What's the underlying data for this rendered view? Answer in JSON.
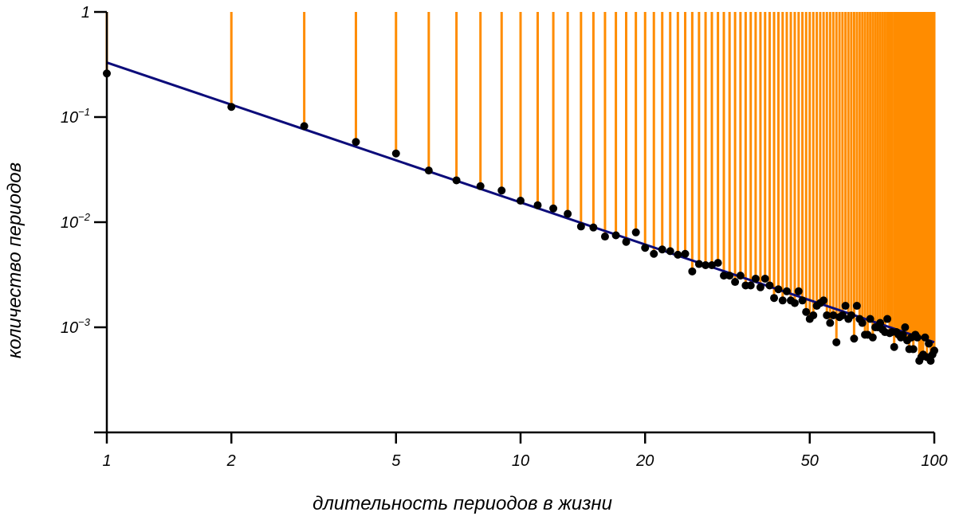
{
  "chart_data": {
    "type": "scatter",
    "x_scale": "log",
    "y_scale": "log",
    "xlabel": "длительность периодов в жизни",
    "ylabel": "количество периодов",
    "xlim": [
      1,
      100
    ],
    "ylim": [
      0.0001,
      1
    ],
    "x_ticks": [
      {
        "value": 1,
        "label": "1"
      },
      {
        "value": 2,
        "label": "2"
      },
      {
        "value": 5,
        "label": "5"
      },
      {
        "value": 10,
        "label": "10"
      },
      {
        "value": 20,
        "label": "20"
      },
      {
        "value": 50,
        "label": "50"
      },
      {
        "value": 100,
        "label": "100"
      }
    ],
    "y_ticks": [
      {
        "value": 1,
        "base": "1",
        "exp": ""
      },
      {
        "value": 0.1,
        "base": "10",
        "exp": "−1"
      },
      {
        "value": 0.01,
        "base": "10",
        "exp": "−2"
      },
      {
        "value": 0.001,
        "base": "10",
        "exp": "−3"
      }
    ],
    "colors": {
      "points": "#000000",
      "fit_line": "#0c0c7a",
      "stems": "#ff8c00",
      "axes": "#000000"
    },
    "fit_line": {
      "x": [
        1,
        100
      ],
      "y": [
        0.33,
        0.00072
      ]
    },
    "points": [
      [
        1,
        0.26
      ],
      [
        2,
        0.125
      ],
      [
        3,
        0.082
      ],
      [
        4,
        0.058
      ],
      [
        5,
        0.045
      ],
      [
        6,
        0.031
      ],
      [
        7,
        0.025
      ],
      [
        8,
        0.022
      ],
      [
        9,
        0.02
      ],
      [
        10,
        0.016
      ],
      [
        11,
        0.0145
      ],
      [
        12,
        0.0135
      ],
      [
        13,
        0.012
      ],
      [
        14,
        0.0091
      ],
      [
        15,
        0.0089
      ],
      [
        16,
        0.0073
      ],
      [
        17,
        0.0075
      ],
      [
        18,
        0.0065
      ],
      [
        19,
        0.008
      ],
      [
        20,
        0.0057
      ],
      [
        21,
        0.005
      ],
      [
        22,
        0.0055
      ],
      [
        23,
        0.0053
      ],
      [
        24,
        0.0049
      ],
      [
        25,
        0.005
      ],
      [
        26,
        0.0034
      ],
      [
        27,
        0.004
      ],
      [
        28,
        0.0039
      ],
      [
        29,
        0.0039
      ],
      [
        30,
        0.0041
      ],
      [
        31,
        0.0031
      ],
      [
        32,
        0.0031
      ],
      [
        33,
        0.0027
      ],
      [
        34,
        0.0031
      ],
      [
        35,
        0.0025
      ],
      [
        36,
        0.0025
      ],
      [
        37,
        0.0029
      ],
      [
        38,
        0.0024
      ],
      [
        39,
        0.0029
      ],
      [
        40,
        0.0025
      ],
      [
        41,
        0.0019
      ],
      [
        42,
        0.0023
      ],
      [
        43,
        0.0018
      ],
      [
        44,
        0.0022
      ],
      [
        45,
        0.0018
      ],
      [
        46,
        0.0017
      ],
      [
        47,
        0.0022
      ],
      [
        48,
        0.0018
      ],
      [
        49,
        0.0014
      ],
      [
        50,
        0.0012
      ],
      [
        51,
        0.0013
      ],
      [
        52,
        0.0016
      ],
      [
        53,
        0.0017
      ],
      [
        54,
        0.0018
      ],
      [
        55,
        0.0013
      ],
      [
        56,
        0.0011
      ],
      [
        57,
        0.0013
      ],
      [
        58,
        0.00072
      ],
      [
        59,
        0.00125
      ],
      [
        60,
        0.0013
      ],
      [
        61,
        0.0016
      ],
      [
        62,
        0.0012
      ],
      [
        63,
        0.0013
      ],
      [
        64,
        0.00078
      ],
      [
        65,
        0.0016
      ],
      [
        66,
        0.0012
      ],
      [
        67,
        0.0011
      ],
      [
        68,
        0.00085
      ],
      [
        69,
        0.00085
      ],
      [
        70,
        0.0012
      ],
      [
        71,
        0.0008
      ],
      [
        72,
        0.001
      ],
      [
        73,
        0.001
      ],
      [
        74,
        0.0011
      ],
      [
        75,
        0.00095
      ],
      [
        76,
        0.0009
      ],
      [
        77,
        0.0012
      ],
      [
        78,
        0.00088
      ],
      [
        79,
        0.0009
      ],
      [
        80,
        0.00065
      ],
      [
        81,
        0.0009
      ],
      [
        82,
        0.00085
      ],
      [
        83,
        0.0008
      ],
      [
        84,
        0.00085
      ],
      [
        85,
        0.001
      ],
      [
        86,
        0.00075
      ],
      [
        87,
        0.00062
      ],
      [
        88,
        0.0008
      ],
      [
        89,
        0.00062
      ],
      [
        90,
        0.00085
      ],
      [
        91,
        0.0008
      ],
      [
        92,
        0.00048
      ],
      [
        93,
        0.00052
      ],
      [
        94,
        0.00055
      ],
      [
        95,
        0.0008
      ],
      [
        96,
        0.00052
      ],
      [
        97,
        0.0007
      ],
      [
        98,
        0.00048
      ],
      [
        99,
        0.00055
      ],
      [
        100,
        0.0006
      ]
    ]
  }
}
